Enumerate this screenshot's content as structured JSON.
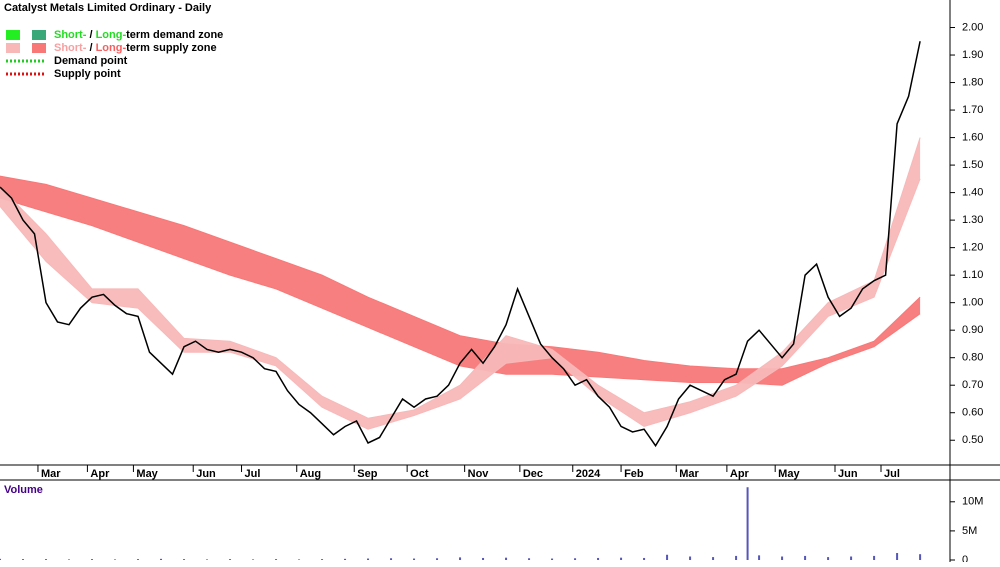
{
  "chart_data": [
    {
      "type": "line",
      "title": "Catalyst Metals Limited Ordinary - Daily",
      "color": "#000000",
      "x": [
        0,
        5,
        10,
        15,
        20,
        25,
        30,
        35,
        40,
        45,
        50,
        55,
        60,
        65,
        70,
        75,
        80,
        85,
        90,
        95,
        100,
        105,
        110,
        115,
        120,
        125,
        130,
        135,
        140,
        145,
        150,
        155,
        160,
        165,
        170,
        175,
        180,
        185,
        190,
        195,
        200,
        205,
        210,
        215,
        220,
        225,
        230,
        235,
        240,
        245,
        250,
        255,
        260,
        265,
        270,
        275,
        280,
        285,
        290,
        295,
        300,
        305,
        310,
        315,
        320,
        325,
        330,
        335,
        340,
        345,
        350,
        355,
        360,
        365,
        370,
        375,
        380,
        385,
        390,
        395,
        400
      ],
      "values": [
        1.42,
        1.38,
        1.3,
        1.25,
        1.0,
        0.93,
        0.92,
        0.98,
        1.02,
        1.03,
        0.99,
        0.96,
        0.95,
        0.82,
        0.78,
        0.74,
        0.84,
        0.86,
        0.83,
        0.82,
        0.83,
        0.82,
        0.8,
        0.76,
        0.75,
        0.68,
        0.63,
        0.6,
        0.56,
        0.52,
        0.55,
        0.57,
        0.49,
        0.51,
        0.58,
        0.65,
        0.62,
        0.65,
        0.66,
        0.7,
        0.78,
        0.83,
        0.78,
        0.84,
        0.92,
        1.05,
        0.95,
        0.85,
        0.8,
        0.76,
        0.7,
        0.72,
        0.66,
        0.62,
        0.55,
        0.53,
        0.54,
        0.48,
        0.55,
        0.65,
        0.7,
        0.68,
        0.66,
        0.72,
        0.74,
        0.86,
        0.9,
        0.85,
        0.8,
        0.85,
        1.1,
        1.14,
        1.02,
        0.95,
        0.98,
        1.05,
        1.08,
        1.1,
        1.65,
        1.75,
        1.95
      ],
      "band_x": [
        0,
        20,
        40,
        60,
        80,
        100,
        120,
        140,
        160,
        180,
        200,
        220,
        240,
        260,
        280,
        300,
        320,
        340,
        360,
        380,
        400
      ],
      "bands": [
        {
          "color": "#f87878",
          "upper": [
            1.46,
            1.43,
            1.38,
            1.33,
            1.28,
            1.22,
            1.16,
            1.1,
            1.02,
            0.95,
            0.88,
            0.85,
            0.84,
            0.82,
            0.79,
            0.77,
            0.76,
            0.76,
            0.8,
            0.86,
            1.02
          ],
          "lower": [
            1.38,
            1.33,
            1.28,
            1.22,
            1.16,
            1.1,
            1.05,
            0.98,
            0.91,
            0.84,
            0.77,
            0.74,
            0.74,
            0.73,
            0.72,
            0.71,
            0.71,
            0.7,
            0.78,
            0.84,
            0.96
          ]
        },
        {
          "color": "#f8b8b8",
          "upper": [
            1.42,
            1.25,
            1.05,
            1.05,
            0.87,
            0.86,
            0.8,
            0.66,
            0.58,
            0.61,
            0.7,
            0.88,
            0.83,
            0.7,
            0.6,
            0.64,
            0.7,
            0.82,
            1.0,
            1.08,
            1.6
          ],
          "lower": [
            1.35,
            1.15,
            1.0,
            0.98,
            0.82,
            0.82,
            0.77,
            0.62,
            0.54,
            0.59,
            0.65,
            0.78,
            0.8,
            0.66,
            0.55,
            0.6,
            0.66,
            0.77,
            0.95,
            1.02,
            1.45
          ]
        }
      ],
      "xlim": [
        0,
        413
      ],
      "xticks": [
        {
          "value": 16.5,
          "label": "Mar"
        },
        {
          "value": 38,
          "label": "Apr"
        },
        {
          "value": 58,
          "label": "May"
        },
        {
          "value": 84,
          "label": "Jun"
        },
        {
          "value": 105,
          "label": "Jul"
        },
        {
          "value": 129,
          "label": "Aug"
        },
        {
          "value": 154,
          "label": "Sep"
        },
        {
          "value": 177,
          "label": "Oct"
        },
        {
          "value": 202,
          "label": "Nov"
        },
        {
          "value": 226,
          "label": "Dec"
        },
        {
          "value": 249,
          "label": "2024"
        },
        {
          "value": 270,
          "label": "Feb"
        },
        {
          "value": 294,
          "label": "Mar"
        },
        {
          "value": 316,
          "label": "Apr"
        },
        {
          "value": 337,
          "label": "May"
        },
        {
          "value": 363,
          "label": "Jun"
        },
        {
          "value": 383,
          "label": "Jul"
        }
      ],
      "ylim": [
        0.41,
        2.1
      ],
      "yticks": [
        {
          "value": 0.5,
          "label": "0.50"
        },
        {
          "value": 0.6,
          "label": "0.60"
        },
        {
          "value": 0.7,
          "label": "0.70"
        },
        {
          "value": 0.8,
          "label": "0.80"
        },
        {
          "value": 0.9,
          "label": "0.90"
        },
        {
          "value": 1.0,
          "label": "1.00"
        },
        {
          "value": 1.1,
          "label": "1.10"
        },
        {
          "value": 1.2,
          "label": "1.20"
        },
        {
          "value": 1.3,
          "label": "1.30"
        },
        {
          "value": 1.4,
          "label": "1.40"
        },
        {
          "value": 1.5,
          "label": "1.50"
        },
        {
          "value": 1.6,
          "label": "1.60"
        },
        {
          "value": 1.7,
          "label": "1.70"
        },
        {
          "value": 1.8,
          "label": "1.80"
        },
        {
          "value": 1.9,
          "label": "1.90"
        },
        {
          "value": 2.0,
          "label": "2.00"
        }
      ],
      "legend": [
        {
          "parts": [
            "Short-",
            " / ",
            "Long-",
            "term demand zone"
          ],
          "colors": [
            "#22dd22",
            "#000000",
            "#22dd22",
            "#000000"
          ],
          "swatches": [
            "#22ee22",
            "#3aa878"
          ],
          "style": "block"
        },
        {
          "parts": [
            "Short-",
            " / ",
            "Long-",
            "term supply zone"
          ],
          "colors": [
            "#f8a0a0",
            "#000000",
            "#f86060",
            "#000000"
          ],
          "swatches": [
            "#f8b8b8",
            "#f87878"
          ],
          "style": "block"
        },
        {
          "parts": [
            "Demand point"
          ],
          "colors": [
            "#000000"
          ],
          "swatches": [
            "#22cc22"
          ],
          "style": "dotted"
        },
        {
          "parts": [
            "Supply point"
          ],
          "colors": [
            "#000000"
          ],
          "swatches": [
            "#dd1111"
          ],
          "style": "dotted"
        }
      ]
    },
    {
      "type": "bar",
      "title": "Volume",
      "color": "#5555bb",
      "x": [
        0,
        10,
        20,
        30,
        40,
        50,
        60,
        70,
        80,
        90,
        100,
        110,
        120,
        130,
        140,
        150,
        160,
        170,
        180,
        190,
        200,
        210,
        220,
        230,
        240,
        250,
        260,
        270,
        280,
        290,
        300,
        310,
        320,
        325,
        330,
        340,
        350,
        360,
        370,
        380,
        390,
        400
      ],
      "values": [
        200000,
        150000,
        150000,
        100000,
        150000,
        100000,
        150000,
        200000,
        150000,
        100000,
        150000,
        100000,
        150000,
        100000,
        150000,
        200000,
        250000,
        300000,
        250000,
        300000,
        450000,
        350000,
        400000,
        300000,
        250000,
        300000,
        350000,
        400000,
        350000,
        900000,
        600000,
        500000,
        700000,
        12500000,
        800000,
        600000,
        700000,
        500000,
        600000,
        700000,
        1200000,
        1000000
      ],
      "ylim": [
        0,
        13400000
      ],
      "yticks": [
        {
          "value": 0,
          "label": "0"
        },
        {
          "value": 5000000,
          "label": "5M"
        },
        {
          "value": 10000000,
          "label": "10M"
        }
      ]
    }
  ]
}
